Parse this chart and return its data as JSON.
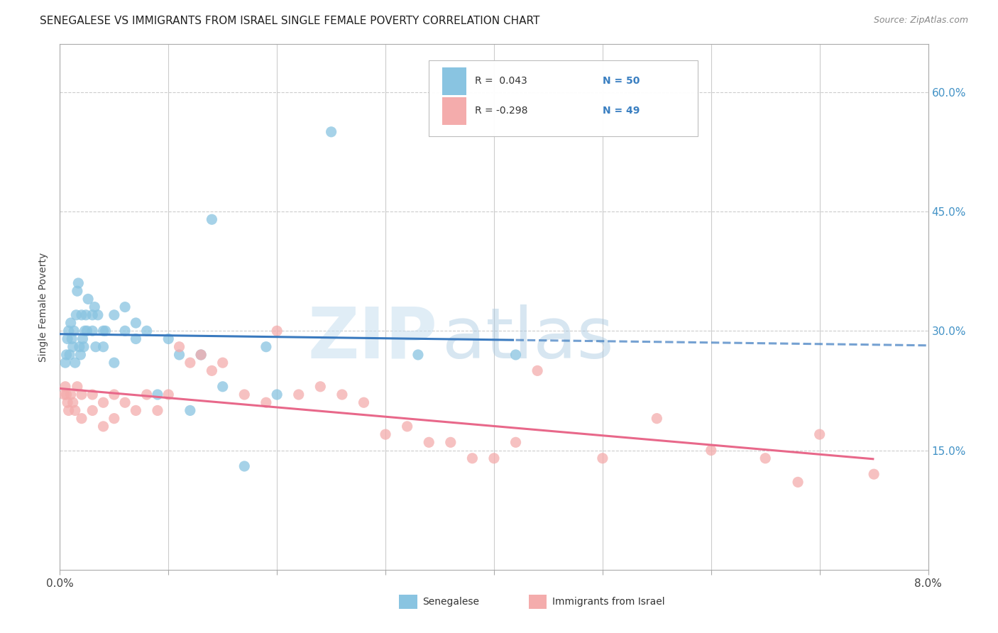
{
  "title": "SENEGALESE VS IMMIGRANTS FROM ISRAEL SINGLE FEMALE POVERTY CORRELATION CHART",
  "source": "Source: ZipAtlas.com",
  "ylabel": "Single Female Poverty",
  "y_ticks": [
    0.15,
    0.3,
    0.45,
    0.6
  ],
  "y_tick_labels": [
    "15.0%",
    "30.0%",
    "45.0%",
    "60.0%"
  ],
  "x_range": [
    0.0,
    0.08
  ],
  "y_range": [
    0.0,
    0.66
  ],
  "legend_label1": "Senegalese",
  "legend_label2": "Immigrants from Israel",
  "blue_color": "#89C4E1",
  "pink_color": "#F4ACAC",
  "blue_line_color": "#3A7ABF",
  "pink_line_color": "#E8688A",
  "senegalese_x": [
    0.0005,
    0.0006,
    0.0007,
    0.0008,
    0.0009,
    0.001,
    0.0011,
    0.0012,
    0.0013,
    0.0014,
    0.0015,
    0.0016,
    0.0017,
    0.0018,
    0.0019,
    0.002,
    0.0021,
    0.0022,
    0.0023,
    0.0024,
    0.0025,
    0.0026,
    0.003,
    0.003,
    0.0032,
    0.0033,
    0.0035,
    0.004,
    0.004,
    0.0042,
    0.005,
    0.005,
    0.006,
    0.006,
    0.007,
    0.007,
    0.008,
    0.009,
    0.01,
    0.011,
    0.012,
    0.013,
    0.014,
    0.015,
    0.017,
    0.019,
    0.02,
    0.025,
    0.033,
    0.042
  ],
  "senegalese_y": [
    0.26,
    0.27,
    0.29,
    0.3,
    0.27,
    0.31,
    0.29,
    0.28,
    0.3,
    0.26,
    0.32,
    0.35,
    0.36,
    0.28,
    0.27,
    0.32,
    0.29,
    0.28,
    0.3,
    0.32,
    0.3,
    0.34,
    0.32,
    0.3,
    0.33,
    0.28,
    0.32,
    0.3,
    0.28,
    0.3,
    0.32,
    0.26,
    0.3,
    0.33,
    0.29,
    0.31,
    0.3,
    0.22,
    0.29,
    0.27,
    0.2,
    0.27,
    0.44,
    0.23,
    0.13,
    0.28,
    0.22,
    0.55,
    0.27,
    0.27
  ],
  "israel_x": [
    0.0004,
    0.0005,
    0.0006,
    0.0007,
    0.0008,
    0.001,
    0.0012,
    0.0014,
    0.0016,
    0.002,
    0.002,
    0.003,
    0.003,
    0.004,
    0.004,
    0.005,
    0.005,
    0.006,
    0.007,
    0.008,
    0.009,
    0.01,
    0.011,
    0.012,
    0.013,
    0.014,
    0.015,
    0.017,
    0.019,
    0.02,
    0.022,
    0.024,
    0.026,
    0.028,
    0.03,
    0.032,
    0.034,
    0.036,
    0.038,
    0.04,
    0.042,
    0.044,
    0.05,
    0.055,
    0.06,
    0.065,
    0.068,
    0.07,
    0.075
  ],
  "israel_y": [
    0.22,
    0.23,
    0.22,
    0.21,
    0.2,
    0.22,
    0.21,
    0.2,
    0.23,
    0.22,
    0.19,
    0.22,
    0.2,
    0.21,
    0.18,
    0.22,
    0.19,
    0.21,
    0.2,
    0.22,
    0.2,
    0.22,
    0.28,
    0.26,
    0.27,
    0.25,
    0.26,
    0.22,
    0.21,
    0.3,
    0.22,
    0.23,
    0.22,
    0.21,
    0.17,
    0.18,
    0.16,
    0.16,
    0.14,
    0.14,
    0.16,
    0.25,
    0.14,
    0.19,
    0.15,
    0.14,
    0.11,
    0.17,
    0.12
  ],
  "watermark_zip": "ZIP",
  "watermark_atlas": "atlas",
  "title_fontsize": 11,
  "axis_fontsize": 10
}
